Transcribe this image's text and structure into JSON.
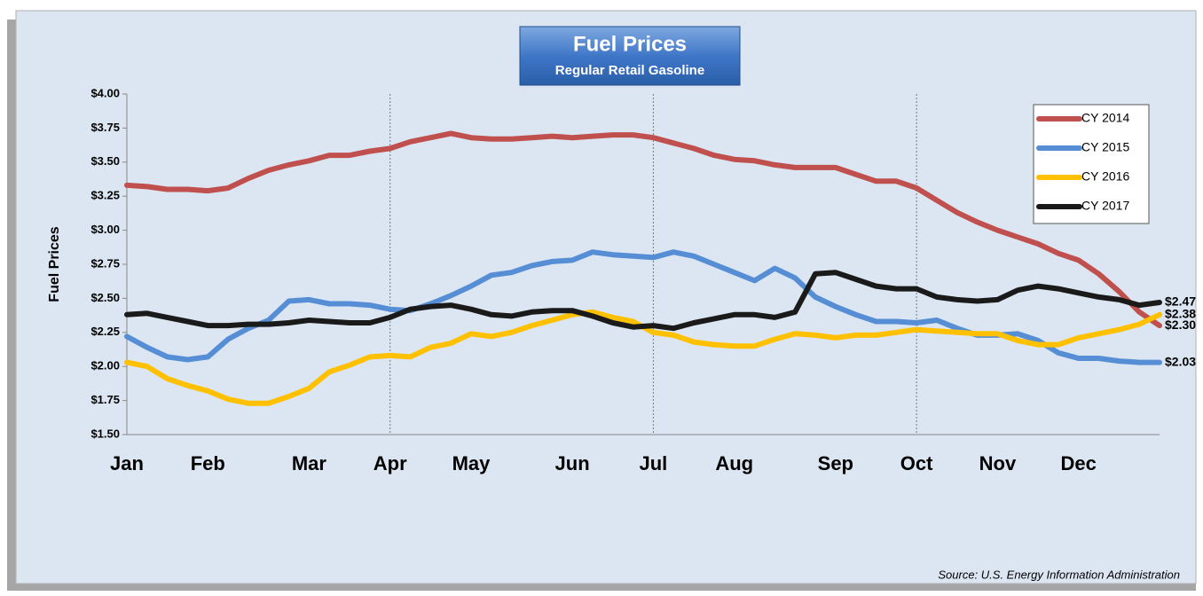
{
  "chart_data": {
    "type": "line",
    "title": "Fuel Prices",
    "subtitle": "Regular Retail Gasoline",
    "y_label": "Fuel Prices",
    "source": "Source: U.S. Energy Information Administration",
    "categories": [
      "Jan",
      null,
      null,
      null,
      "Feb",
      null,
      null,
      null,
      null,
      "Mar",
      null,
      null,
      null,
      "Apr",
      null,
      null,
      null,
      "May",
      null,
      null,
      null,
      null,
      "Jun",
      null,
      null,
      null,
      "Jul",
      null,
      null,
      null,
      "Aug",
      null,
      null,
      null,
      null,
      "Sep",
      null,
      null,
      null,
      "Oct",
      null,
      null,
      null,
      "Nov",
      null,
      null,
      null,
      "Dec",
      null,
      null,
      null,
      null
    ],
    "ylim": [
      1.5,
      4.0
    ],
    "yticks": [
      {
        "value": 1.5,
        "label": "$1.50"
      },
      {
        "value": 1.75,
        "label": "$1.75"
      },
      {
        "value": 2.0,
        "label": "$2.00"
      },
      {
        "value": 2.25,
        "label": "$2.25"
      },
      {
        "value": 2.5,
        "label": "$2.50"
      },
      {
        "value": 2.75,
        "label": "$2.75"
      },
      {
        "value": 3.0,
        "label": "$3.00"
      },
      {
        "value": 3.25,
        "label": "$3.25"
      },
      {
        "value": 3.5,
        "label": "$3.50"
      },
      {
        "value": 3.75,
        "label": "$3.75"
      },
      {
        "value": 4.0,
        "label": "$4.00"
      }
    ],
    "legend": "top-right",
    "series": [
      {
        "name": "CY 2014",
        "color": "#c0504d",
        "values": [
          3.33,
          3.32,
          3.3,
          3.3,
          3.29,
          3.31,
          3.38,
          3.44,
          3.48,
          3.51,
          3.55,
          3.55,
          3.58,
          3.6,
          3.65,
          3.68,
          3.71,
          3.68,
          3.67,
          3.67,
          3.68,
          3.69,
          3.68,
          3.69,
          3.7,
          3.7,
          3.68,
          3.64,
          3.6,
          3.55,
          3.52,
          3.51,
          3.48,
          3.46,
          3.46,
          3.46,
          3.41,
          3.36,
          3.36,
          3.31,
          3.22,
          3.13,
          3.06,
          3.0,
          2.95,
          2.9,
          2.83,
          2.78,
          2.68,
          2.55,
          2.4,
          2.3
        ],
        "value_labels": [
          null,
          null,
          null,
          null,
          null,
          null,
          null,
          null,
          null,
          null,
          null,
          null,
          null,
          null,
          null,
          null,
          null,
          null,
          null,
          null,
          null,
          null,
          null,
          null,
          null,
          null,
          null,
          null,
          null,
          null,
          null,
          null,
          null,
          null,
          null,
          null,
          null,
          null,
          null,
          null,
          null,
          null,
          null,
          null,
          null,
          null,
          null,
          null,
          null,
          null,
          null,
          "$2.30"
        ]
      },
      {
        "name": "CY 2015",
        "color": "#558ed5",
        "values": [
          2.22,
          2.14,
          2.07,
          2.05,
          2.07,
          2.2,
          2.28,
          2.34,
          2.48,
          2.49,
          2.46,
          2.46,
          2.45,
          2.42,
          2.41,
          2.46,
          2.52,
          2.59,
          2.67,
          2.69,
          2.74,
          2.77,
          2.78,
          2.84,
          2.82,
          2.81,
          2.8,
          2.84,
          2.81,
          2.75,
          2.69,
          2.63,
          2.72,
          2.65,
          2.51,
          2.44,
          2.38,
          2.33,
          2.33,
          2.32,
          2.34,
          2.28,
          2.23,
          2.23,
          2.24,
          2.19,
          2.1,
          2.06,
          2.06,
          2.04,
          2.03,
          2.03
        ],
        "value_labels": [
          null,
          null,
          null,
          null,
          null,
          null,
          null,
          null,
          null,
          null,
          null,
          null,
          null,
          null,
          null,
          null,
          null,
          null,
          null,
          null,
          null,
          null,
          null,
          null,
          null,
          null,
          null,
          null,
          null,
          null,
          null,
          null,
          null,
          null,
          null,
          null,
          null,
          null,
          null,
          null,
          null,
          null,
          null,
          null,
          null,
          null,
          null,
          null,
          null,
          null,
          null,
          "$2.03"
        ]
      },
      {
        "name": "CY 2016",
        "color": "#ffc000",
        "values": [
          2.03,
          2.0,
          1.91,
          1.86,
          1.82,
          1.76,
          1.73,
          1.73,
          1.78,
          1.84,
          1.96,
          2.01,
          2.07,
          2.08,
          2.07,
          2.14,
          2.17,
          2.24,
          2.22,
          2.25,
          2.3,
          2.34,
          2.38,
          2.4,
          2.36,
          2.33,
          2.25,
          2.23,
          2.18,
          2.16,
          2.15,
          2.15,
          2.2,
          2.24,
          2.23,
          2.21,
          2.23,
          2.23,
          2.25,
          2.27,
          2.26,
          2.25,
          2.24,
          2.24,
          2.19,
          2.16,
          2.16,
          2.21,
          2.24,
          2.27,
          2.31,
          2.38
        ],
        "value_labels": [
          null,
          null,
          null,
          null,
          null,
          null,
          null,
          null,
          null,
          null,
          null,
          null,
          null,
          null,
          null,
          null,
          null,
          null,
          null,
          null,
          null,
          null,
          null,
          null,
          null,
          null,
          null,
          null,
          null,
          null,
          null,
          null,
          null,
          null,
          null,
          null,
          null,
          null,
          null,
          null,
          null,
          null,
          null,
          null,
          null,
          null,
          null,
          null,
          null,
          null,
          null,
          "$2.38"
        ]
      },
      {
        "name": "CY 2017",
        "color": "#1a1a1a",
        "values": [
          2.38,
          2.39,
          2.36,
          2.33,
          2.3,
          2.3,
          2.31,
          2.31,
          2.32,
          2.34,
          2.33,
          2.32,
          2.32,
          2.36,
          2.42,
          2.44,
          2.45,
          2.42,
          2.38,
          2.37,
          2.4,
          2.41,
          2.41,
          2.37,
          2.32,
          2.29,
          2.3,
          2.28,
          2.32,
          2.35,
          2.38,
          2.38,
          2.36,
          2.4,
          2.68,
          2.69,
          2.64,
          2.59,
          2.57,
          2.57,
          2.51,
          2.49,
          2.48,
          2.49,
          2.56,
          2.59,
          2.57,
          2.54,
          2.51,
          2.49,
          2.45,
          2.47
        ],
        "value_labels": [
          null,
          null,
          null,
          null,
          null,
          null,
          null,
          null,
          null,
          null,
          null,
          null,
          null,
          null,
          null,
          null,
          null,
          null,
          null,
          null,
          null,
          null,
          null,
          null,
          null,
          null,
          null,
          null,
          null,
          null,
          null,
          null,
          null,
          null,
          null,
          null,
          null,
          null,
          null,
          null,
          null,
          null,
          null,
          null,
          null,
          null,
          null,
          null,
          null,
          null,
          null,
          "$2.47"
        ]
      }
    ]
  }
}
